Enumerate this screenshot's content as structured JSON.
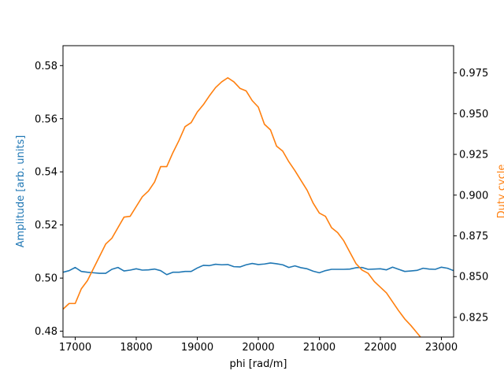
{
  "chart_data": {
    "type": "line",
    "title": "",
    "xlabel": "phi [rad/m]",
    "ylabel_left": "Amplitude [arb. units]",
    "ylabel_right": "Duty cycle",
    "xlim": [
      16800,
      23200
    ],
    "ylim_left": [
      0.4778,
      0.5875
    ],
    "ylim_right": [
      0.8129,
      0.9917
    ],
    "x_ticks": [
      17000,
      18000,
      19000,
      20000,
      21000,
      22000,
      23000
    ],
    "x_tick_labels": [
      "17000",
      "18000",
      "19000",
      "20000",
      "21000",
      "22000",
      "23000"
    ],
    "y_left_ticks": [
      0.48,
      0.5,
      0.52,
      0.54,
      0.56,
      0.58
    ],
    "y_left_tick_labels": [
      "0.48",
      "0.50",
      "0.52",
      "0.54",
      "0.56",
      "0.58"
    ],
    "y_right_ticks": [
      0.825,
      0.85,
      0.875,
      0.9,
      0.925,
      0.95,
      0.975
    ],
    "y_right_tick_labels": [
      "0.825",
      "0.850",
      "0.875",
      "0.900",
      "0.925",
      "0.950",
      "0.975"
    ],
    "grid": false,
    "series": [
      {
        "name": "Amplitude",
        "axis": "left",
        "color": "#1f77b4",
        "x": [
          16800,
          16900,
          17000,
          17100,
          17200,
          17300,
          17400,
          17500,
          17600,
          17700,
          17800,
          17900,
          18000,
          18100,
          18200,
          18300,
          18400,
          18500,
          18600,
          18700,
          18800,
          18900,
          19000,
          19100,
          19200,
          19300,
          19400,
          19500,
          19600,
          19700,
          19800,
          19900,
          20000,
          20100,
          20200,
          20300,
          20400,
          20500,
          20600,
          20700,
          20800,
          20900,
          21000,
          21100,
          21200,
          21300,
          21400,
          21500,
          21600,
          21700,
          21800,
          21900,
          22000,
          22100,
          22200,
          22300,
          22400,
          22500,
          22600,
          22700,
          22800,
          22900,
          23000,
          23100,
          23200
        ],
        "y": [
          0.5022,
          0.5028,
          0.504,
          0.5025,
          0.5022,
          0.502,
          0.5018,
          0.5018,
          0.5033,
          0.504,
          0.5027,
          0.503,
          0.5035,
          0.503,
          0.5031,
          0.5034,
          0.5028,
          0.5013,
          0.5022,
          0.5022,
          0.5025,
          0.5025,
          0.5038,
          0.5048,
          0.5047,
          0.5052,
          0.505,
          0.5051,
          0.5043,
          0.5042,
          0.505,
          0.5055,
          0.5051,
          0.5053,
          0.5057,
          0.5054,
          0.505,
          0.504,
          0.5046,
          0.5039,
          0.5035,
          0.5026,
          0.502,
          0.5028,
          0.5033,
          0.5033,
          0.5033,
          0.5034,
          0.5039,
          0.504,
          0.5033,
          0.5034,
          0.5035,
          0.5031,
          0.5041,
          0.5033,
          0.5025,
          0.5027,
          0.5029,
          0.5037,
          0.5034,
          0.5033,
          0.5041,
          0.5037,
          0.5028
        ]
      },
      {
        "name": "Duty cycle",
        "axis": "right",
        "color": "#ff7f0e",
        "x": [
          16800,
          16900,
          17000,
          17100,
          17200,
          17300,
          17400,
          17500,
          17600,
          17700,
          17800,
          17900,
          18000,
          18100,
          18200,
          18300,
          18400,
          18500,
          18600,
          18700,
          18800,
          18900,
          19000,
          19100,
          19200,
          19300,
          19400,
          19500,
          19600,
          19700,
          19800,
          19900,
          20000,
          20100,
          20200,
          20300,
          20400,
          20500,
          20600,
          20700,
          20800,
          20900,
          21000,
          21100,
          21200,
          21300,
          21400,
          21500,
          21600,
          21700,
          21800,
          21900,
          22000,
          22100,
          22200,
          22300,
          22400,
          22500,
          22600,
          22700,
          22800,
          22900,
          23000,
          23100,
          23200
        ],
        "y": [
          0.83,
          0.8335,
          0.8335,
          0.8425,
          0.8475,
          0.855,
          0.8625,
          0.87,
          0.8735,
          0.88,
          0.8865,
          0.887,
          0.893,
          0.899,
          0.9025,
          0.908,
          0.9175,
          0.9175,
          0.926,
          0.9335,
          0.942,
          0.9445,
          0.951,
          0.9555,
          0.961,
          0.966,
          0.9695,
          0.972,
          0.9695,
          0.9655,
          0.964,
          0.958,
          0.954,
          0.9435,
          0.94,
          0.93,
          0.927,
          0.9205,
          0.915,
          0.909,
          0.903,
          0.895,
          0.889,
          0.887,
          0.88,
          0.877,
          0.872,
          0.865,
          0.858,
          0.854,
          0.852,
          0.847,
          0.8435,
          0.84,
          0.8345,
          0.829,
          0.824,
          0.82,
          0.8155,
          0.811,
          0.81,
          0.81,
          0.81,
          0.81,
          0.81
        ]
      }
    ]
  }
}
